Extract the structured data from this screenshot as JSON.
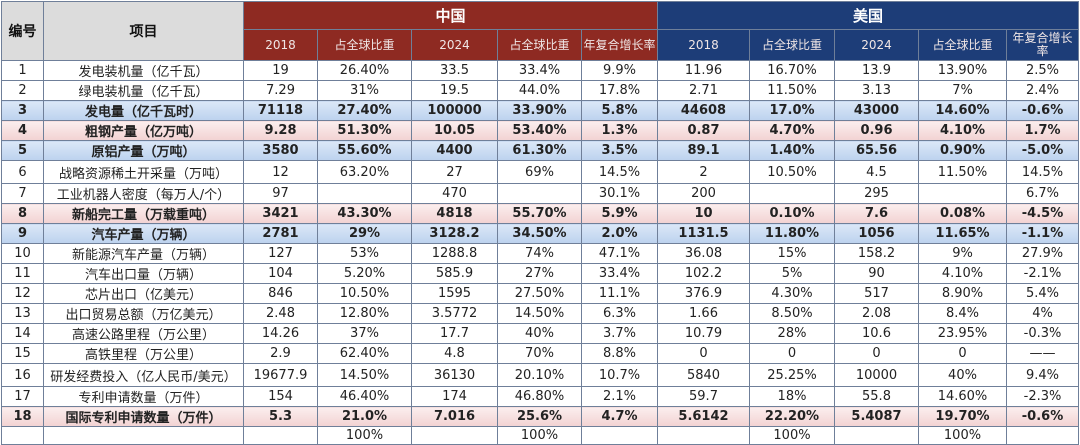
{
  "header": {
    "num": "编号",
    "item": "项目",
    "china": "中国",
    "usa": "美国",
    "sub": [
      "2018",
      "占全球比重",
      "2024",
      "占全球比重",
      "年复合增长率"
    ]
  },
  "colors": {
    "china_header": "#8e2a22",
    "usa_header": "#1d3d78",
    "highlight_blue": "#c5d9f1",
    "highlight_pink": "#f4d8d8"
  },
  "rows": [
    {
      "no": "1",
      "item": "发电装机量（亿千瓦）",
      "hl": "",
      "cn": [
        "19",
        "26.40%",
        "33.5",
        "33.4%",
        "9.9%"
      ],
      "us": [
        "11.96",
        "16.70%",
        "13.9",
        "13.90%",
        "2.5%"
      ]
    },
    {
      "no": "2",
      "item": "绿电装机量（亿千瓦）",
      "hl": "",
      "cn": [
        "7.29",
        "31%",
        "19.5",
        "44.0%",
        "17.8%"
      ],
      "us": [
        "2.71",
        "11.50%",
        "3.13",
        "7%",
        "2.4%"
      ]
    },
    {
      "no": "3",
      "item": "发电量（亿千瓦时）",
      "hl": "blue",
      "cn": [
        "71118",
        "27.40%",
        "100000",
        "33.90%",
        "5.8%"
      ],
      "us": [
        "44608",
        "17.0%",
        "43000",
        "14.60%",
        "-0.6%"
      ]
    },
    {
      "no": "4",
      "item": "粗钢产量（亿万吨）",
      "hl": "pink",
      "cn": [
        "9.28",
        "51.30%",
        "10.05",
        "53.40%",
        "1.3%"
      ],
      "us": [
        "0.87",
        "4.70%",
        "0.96",
        "4.10%",
        "1.7%"
      ]
    },
    {
      "no": "5",
      "item": "原铝产量（万吨）",
      "hl": "blue",
      "cn": [
        "3580",
        "55.60%",
        "4400",
        "61.30%",
        "3.5%"
      ],
      "us": [
        "89.1",
        "1.40%",
        "65.56",
        "0.90%",
        "-5.0%"
      ]
    },
    {
      "no": "6",
      "item": "战略资源稀土开采量（万吨）",
      "hl": "",
      "tall": true,
      "cn": [
        "12",
        "63.20%",
        "27",
        "69%",
        "14.5%"
      ],
      "us": [
        "2",
        "10.50%",
        "4.5",
        "11.50%",
        "14.5%"
      ]
    },
    {
      "no": "7",
      "item": "工业机器人密度（每万人/个）",
      "hl": "",
      "cn": [
        "97",
        "",
        "470",
        "",
        "30.1%"
      ],
      "us": [
        "200",
        "",
        "295",
        "",
        "6.7%"
      ]
    },
    {
      "no": "8",
      "item": "新船完工量（万载重吨）",
      "hl": "pink",
      "cn": [
        "3421",
        "43.30%",
        "4818",
        "55.70%",
        "5.9%"
      ],
      "us": [
        "10",
        "0.10%",
        "7.6",
        "0.08%",
        "-4.5%"
      ]
    },
    {
      "no": "9",
      "item": "汽车产量（万辆）",
      "hl": "blue",
      "cn": [
        "2781",
        "29%",
        "3128.2",
        "34.50%",
        "2.0%"
      ],
      "us": [
        "1131.5",
        "11.80%",
        "1056",
        "11.65%",
        "-1.1%"
      ]
    },
    {
      "no": "10",
      "item": "新能源汽车产量（万辆）",
      "hl": "",
      "cn": [
        "127",
        "53%",
        "1288.8",
        "74%",
        "47.1%"
      ],
      "us": [
        "36.08",
        "15%",
        "158.2",
        "9%",
        "27.9%"
      ]
    },
    {
      "no": "11",
      "item": "汽车出口量（万辆）",
      "hl": "",
      "cn": [
        "104",
        "5.20%",
        "585.9",
        "27%",
        "33.4%"
      ],
      "us": [
        "102.2",
        "5%",
        "90",
        "4.10%",
        "-2.1%"
      ]
    },
    {
      "no": "12",
      "item": "芯片出口（亿美元）",
      "hl": "",
      "cn": [
        "846",
        "10.50%",
        "1595",
        "27.50%",
        "11.1%"
      ],
      "us": [
        "376.9",
        "4.30%",
        "517",
        "8.90%",
        "5.4%"
      ]
    },
    {
      "no": "13",
      "item": "出口贸易总额（万亿美元）",
      "hl": "",
      "cn": [
        "2.48",
        "12.80%",
        "3.5772",
        "14.50%",
        "6.3%"
      ],
      "us": [
        "1.66",
        "8.50%",
        "2.08",
        "8.4%",
        "4%"
      ]
    },
    {
      "no": "14",
      "item": "高速公路里程（万公里）",
      "hl": "",
      "cn": [
        "14.26",
        "37%",
        "17.7",
        "40%",
        "3.7%"
      ],
      "us": [
        "10.79",
        "28%",
        "10.6",
        "23.95%",
        "-0.3%"
      ]
    },
    {
      "no": "15",
      "item": "高铁里程（万公里）",
      "hl": "",
      "cn": [
        "2.9",
        "62.40%",
        "4.8",
        "70%",
        "8.8%"
      ],
      "us": [
        "0",
        "0",
        "0",
        "0",
        "——"
      ]
    },
    {
      "no": "16",
      "item": "研发经费投入（亿人民币/美元）",
      "hl": "",
      "tall": true,
      "cn": [
        "19677.9",
        "14.50%",
        "36130",
        "20.10%",
        "10.7%"
      ],
      "us": [
        "5840",
        "25.25%",
        "10000",
        "40%",
        "9.4%"
      ]
    },
    {
      "no": "17",
      "item": "专利申请数量（万件）",
      "hl": "",
      "cn": [
        "154",
        "46.40%",
        "174",
        "46.80%",
        "2.1%"
      ],
      "us": [
        "59.7",
        "18%",
        "55.8",
        "14.60%",
        "-2.3%"
      ]
    },
    {
      "no": "18",
      "item": "国际专利申请数量（万件）",
      "hl": "pink",
      "cn": [
        "5.3",
        "21.0%",
        "7.016",
        "25.6%",
        "4.7%"
      ],
      "us": [
        "5.6142",
        "22.20%",
        "5.4087",
        "19.70%",
        "-0.6%"
      ]
    },
    {
      "no": "",
      "item": "",
      "hl": "",
      "cn": [
        "",
        "100%",
        "",
        "100%",
        ""
      ],
      "us": [
        "",
        "100%",
        "",
        "100%",
        ""
      ]
    }
  ]
}
